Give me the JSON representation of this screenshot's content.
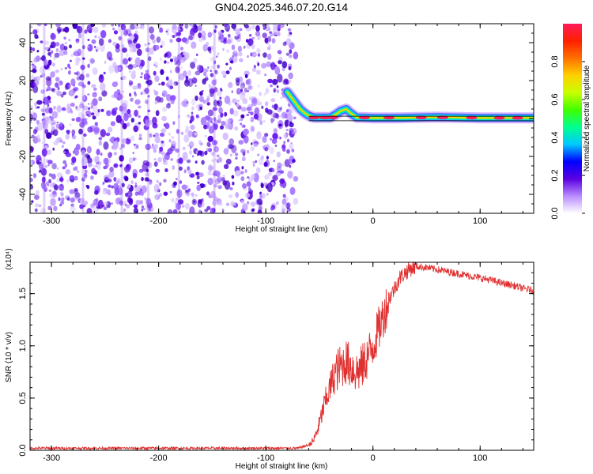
{
  "title": "GN04.2025.346.07.20.G14",
  "chart_data": [
    {
      "type": "heatmap",
      "xlabel": "Height of straight line (km)",
      "ylabel": "Frequency (Hz)",
      "xlim": [
        -320,
        150
      ],
      "ylim": [
        -50,
        50
      ],
      "xticks": [
        -300,
        -200,
        -100,
        0,
        100
      ],
      "yticks": [
        -40,
        -20,
        0,
        20,
        40
      ],
      "colorbar": {
        "label": "Normalized spectral amplitude",
        "range": [
          0,
          1
        ],
        "ticks": [
          0.0,
          0.2,
          0.4,
          0.6,
          0.8
        ],
        "colors": [
          "#ffffff",
          "#b98cff",
          "#5a00e0",
          "#0000ff",
          "#00c8ff",
          "#00ff90",
          "#40ff00",
          "#c8ff00",
          "#ffd000",
          "#ff7000",
          "#ff2000",
          "#ff1a5a"
        ]
      },
      "noise_region_x": [
        -320,
        -72
      ],
      "signal_track": {
        "x": [
          -80,
          -76,
          -72,
          -68,
          -64,
          -60,
          -55,
          -50,
          -45,
          -40,
          -35,
          -30,
          -25,
          -20,
          -15,
          -10,
          0,
          20,
          40,
          60,
          80,
          100,
          120,
          150
        ],
        "y": [
          14,
          11,
          8,
          5,
          3,
          1.5,
          0.5,
          0.5,
          0.5,
          0.5,
          2,
          4,
          5,
          2.5,
          0.5,
          0.5,
          0.3,
          0.3,
          0.5,
          0.7,
          0.5,
          0.3,
          0.3,
          0.3
        ]
      }
    },
    {
      "type": "line",
      "xlabel": "Height of straight line (km)",
      "ylabel": "SNR (10 * v/v)",
      "y_multiplier": "(x10⁴)",
      "xlim": [
        -320,
        150
      ],
      "ylim": [
        0,
        1.8
      ],
      "xticks": [
        -300,
        -200,
        -100,
        0,
        100
      ],
      "yticks": [
        0.0,
        0.5,
        1.0,
        1.5
      ],
      "series": [
        {
          "color": "#e03030",
          "x": [
            -320,
            -250,
            -150,
            -70,
            -60,
            -55,
            -50,
            -45,
            -40,
            -35,
            -30,
            -25,
            -20,
            -15,
            -10,
            -5,
            0,
            5,
            10,
            15,
            20,
            25,
            30,
            35,
            40,
            50,
            60,
            70,
            80,
            90,
            100,
            110,
            120,
            130,
            140,
            150
          ],
          "y": [
            0.02,
            0.02,
            0.02,
            0.02,
            0.05,
            0.1,
            0.25,
            0.45,
            0.6,
            0.75,
            0.8,
            0.85,
            0.8,
            0.75,
            0.8,
            0.9,
            1.0,
            1.15,
            1.3,
            1.45,
            1.55,
            1.65,
            1.7,
            1.74,
            1.76,
            1.75,
            1.73,
            1.71,
            1.69,
            1.67,
            1.65,
            1.63,
            1.6,
            1.58,
            1.55,
            1.53
          ]
        }
      ]
    }
  ]
}
